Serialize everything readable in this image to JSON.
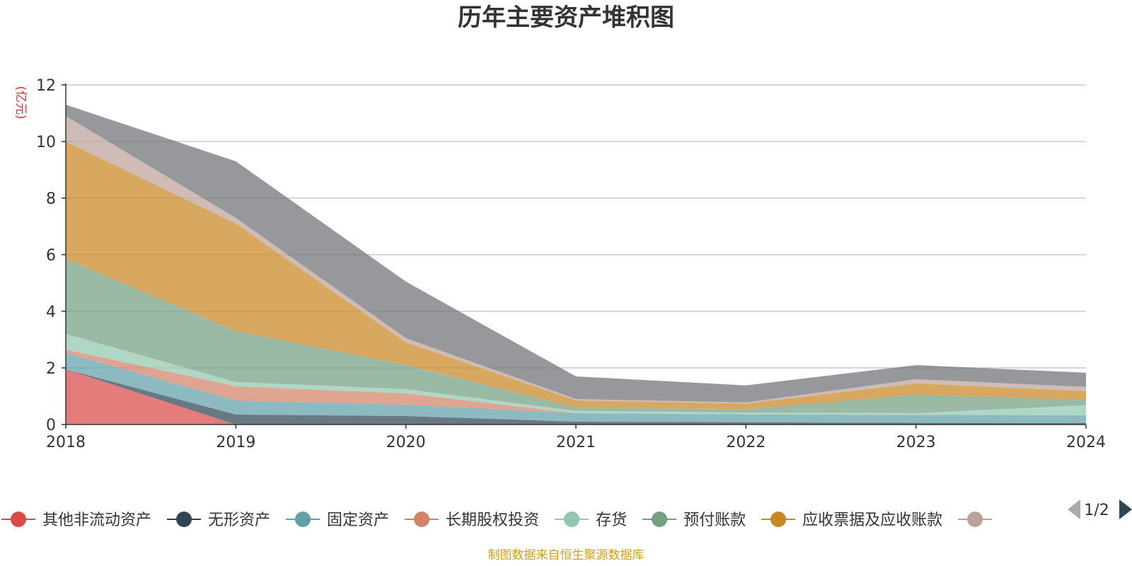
{
  "chart_data": {
    "type": "area",
    "stacked": true,
    "title": "历年主要资产堆积图",
    "unit": "(亿元)",
    "x": [
      "2018",
      "2019",
      "2020",
      "2021",
      "2022",
      "2023",
      "2024"
    ],
    "ylim": [
      0,
      12
    ],
    "yticks": [
      0,
      2,
      4,
      6,
      8,
      10,
      12
    ],
    "grid": true,
    "legend_position": "bottom",
    "series": [
      {
        "name": "其他非流动资产",
        "color": "#d94a4a",
        "values": [
          1.95,
          0.0,
          0.0,
          0.0,
          0.0,
          0.0,
          0.0
        ]
      },
      {
        "name": "无形资产",
        "color": "#2f4554",
        "values": [
          0.0,
          0.35,
          0.3,
          0.1,
          0.08,
          0.06,
          0.05
        ]
      },
      {
        "name": "固定资产",
        "color": "#61a0a8",
        "values": [
          0.58,
          0.5,
          0.4,
          0.3,
          0.28,
          0.28,
          0.28
        ]
      },
      {
        "name": "长期股权投资",
        "color": "#d48265",
        "values": [
          0.12,
          0.5,
          0.4,
          0.0,
          0.0,
          0.0,
          0.0
        ]
      },
      {
        "name": "存货",
        "color": "#91c7ae",
        "values": [
          0.55,
          0.15,
          0.15,
          0.08,
          0.06,
          0.06,
          0.35
        ]
      },
      {
        "name": "预付账款",
        "color": "#749f83",
        "values": [
          2.65,
          1.8,
          0.85,
          0.12,
          0.12,
          0.65,
          0.2
        ]
      },
      {
        "name": "应收票据及应收账款",
        "color": "#ca8622",
        "values": [
          4.15,
          3.8,
          0.8,
          0.25,
          0.2,
          0.4,
          0.3
        ]
      },
      {
        "name": "",
        "color": "#bda29a",
        "values": [
          0.9,
          0.2,
          0.15,
          0.05,
          0.04,
          0.15,
          0.15
        ]
      },
      {
        "name": "",
        "color": "#6e7074",
        "values": [
          0.4,
          2.0,
          2.0,
          0.8,
          0.6,
          0.5,
          0.5
        ]
      }
    ],
    "legend_visible_count": 8,
    "source": "制图数据来自恒生聚源数据库"
  },
  "legend_pager": {
    "page_text": "1/2"
  }
}
